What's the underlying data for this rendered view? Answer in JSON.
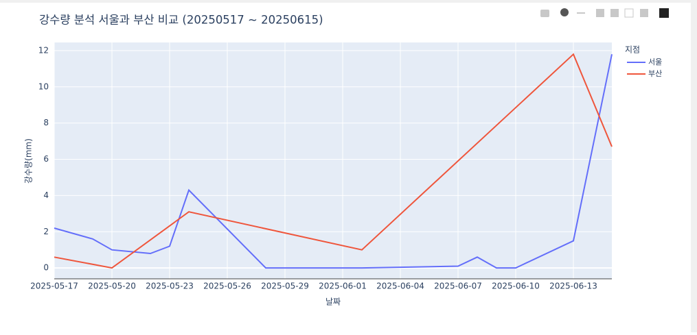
{
  "chart_data": {
    "type": "line",
    "title": "강수량 분석 서울과 부산 비교 (20250517 ~ 20250615)",
    "x_label": "날짜",
    "y_label": "강수량(mm)",
    "legend_title": "지점",
    "series": [
      {
        "name": "서울",
        "color": "#636efa",
        "x": [
          "2025-05-17",
          "2025-05-19",
          "2025-05-20",
          "2025-05-22",
          "2025-05-23",
          "2025-05-24",
          "2025-05-28",
          "2025-06-02",
          "2025-06-07",
          "2025-06-08",
          "2025-06-09",
          "2025-06-10",
          "2025-06-13",
          "2025-06-15"
        ],
        "values": [
          2.2,
          1.6,
          1.0,
          0.8,
          1.2,
          4.3,
          0,
          0,
          0.1,
          0.6,
          0,
          0,
          1.5,
          11.8
        ]
      },
      {
        "name": "부산",
        "color": "#ef553b",
        "x": [
          "2025-05-17",
          "2025-05-20",
          "2025-05-24",
          "2025-06-02",
          "2025-06-13",
          "2025-06-15"
        ],
        "values": [
          0.6,
          0,
          3.1,
          1.0,
          11.8,
          6.7
        ]
      }
    ],
    "xlim": [
      "2025-05-17",
      "2025-06-15"
    ],
    "xticks": [
      "2025-05-17",
      "2025-05-20",
      "2025-05-23",
      "2025-05-26",
      "2025-05-29",
      "2025-06-01",
      "2025-06-04",
      "2025-06-07",
      "2025-06-10",
      "2025-06-13"
    ],
    "ylim": [
      -0.6,
      12.45
    ],
    "yticks": [
      0,
      2,
      4,
      6,
      8,
      10,
      12
    ],
    "grid": true,
    "plot_bg": "#e5ecf6"
  }
}
